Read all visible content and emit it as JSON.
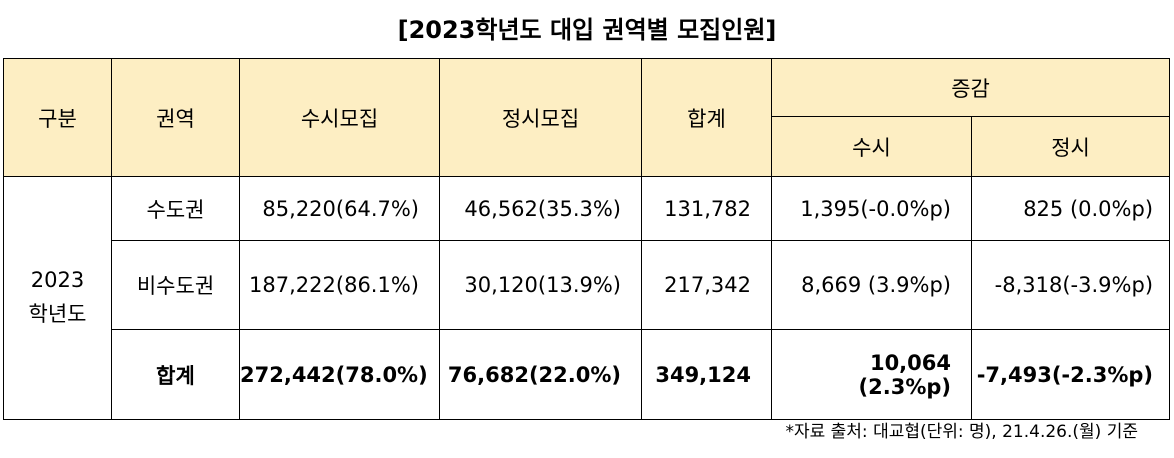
{
  "title": "[2023학년도 대입 권역별 모집인원]",
  "table": {
    "headers": {
      "category": "구분",
      "region": "권역",
      "early": "수시모집",
      "regular": "정시모집",
      "total": "합계",
      "change": "증감",
      "change_early": "수시",
      "change_regular": "정시"
    },
    "year_label_line1": "2023",
    "year_label_line2": "학년도",
    "rows": [
      {
        "region": "수도권",
        "early": "85,220(64.7%)",
        "regular": "46,562(35.3%)",
        "total": "131,782",
        "change_early": "1,395(-0.0%p)",
        "change_regular": "825  (0.0%p)"
      },
      {
        "region": "비수도권",
        "early": "187,222(86.1%)",
        "regular": "30,120(13.9%)",
        "total": "217,342",
        "change_early": "8,669  (3.9%p)",
        "change_regular": "-8,318(-3.9%p)"
      },
      {
        "region": "합계",
        "early": "272,442(78.0%)",
        "regular": "76,682(22.0%)",
        "total": "349,124",
        "change_early": "10,064  (2.3%p)",
        "change_regular": "-7,493(-2.3%p)"
      }
    ]
  },
  "footnote": "*자료 출처: 대교협(단위: 명), 21.4.26.(월) 기준"
}
